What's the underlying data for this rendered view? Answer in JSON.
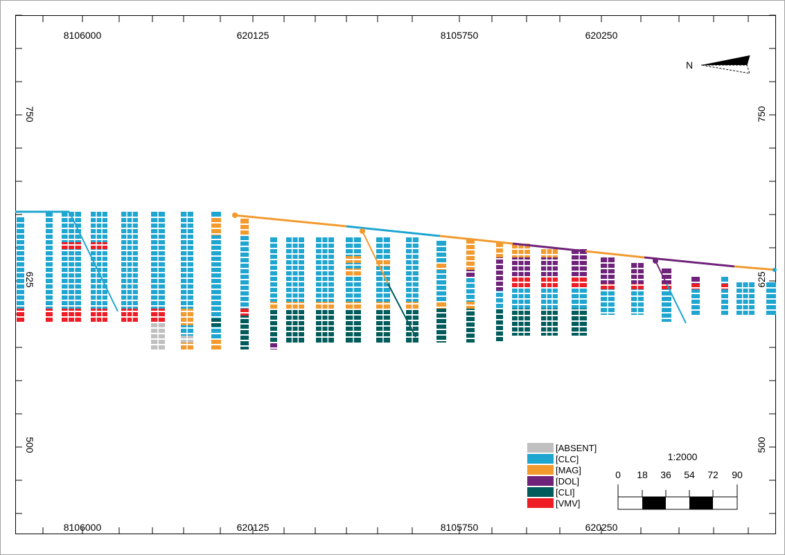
{
  "coords": {
    "top": [
      "8106000",
      "620125",
      "8105750",
      "620250"
    ],
    "bottom": [
      "8106000",
      "620125",
      "8105750",
      "620250"
    ],
    "left": [
      "750",
      "625",
      "500"
    ],
    "right": [
      "750",
      "625",
      "500"
    ]
  },
  "north_label": "N",
  "legend": {
    "items": [
      {
        "code": "[ABSENT]",
        "color": "#c0c0c0"
      },
      {
        "code": "[CLC]",
        "color": "#1ea5d0"
      },
      {
        "code": "[MAG]",
        "color": "#f29a2e"
      },
      {
        "code": "[DOL]",
        "color": "#6e2279"
      },
      {
        "code": "[CLI]",
        "color": "#005b5b"
      },
      {
        "code": "[VMV]",
        "color": "#ee1c25"
      }
    ]
  },
  "scale": {
    "ratio": "1:2000",
    "ticks": [
      "0",
      "18",
      "36",
      "54",
      "72",
      "90"
    ]
  }
}
